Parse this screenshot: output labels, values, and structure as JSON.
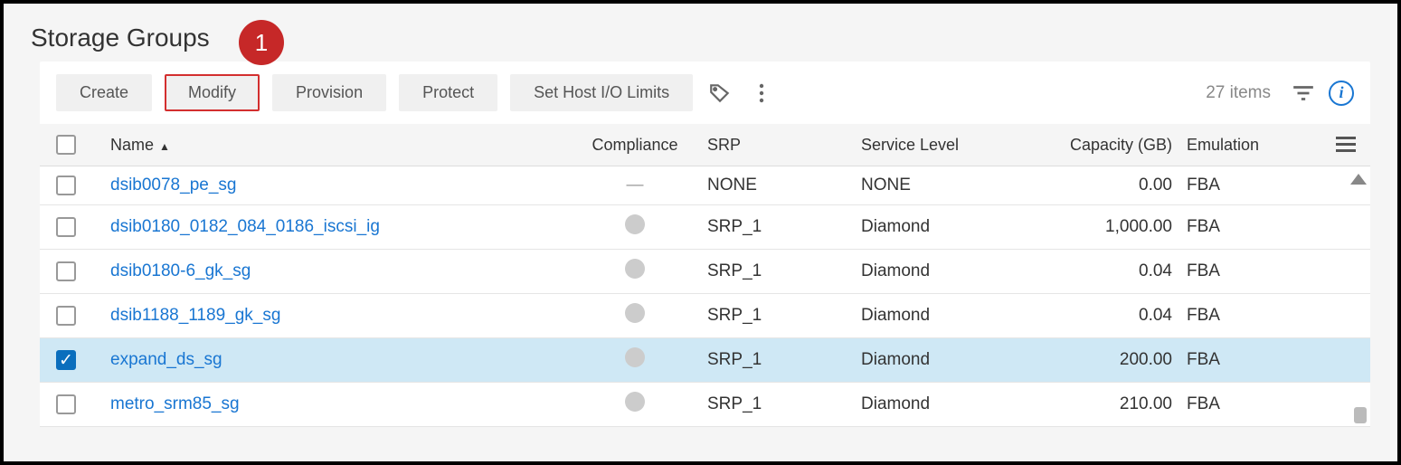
{
  "page": {
    "title": "Storage Groups"
  },
  "callout": {
    "number": "1",
    "bg": "#c62828"
  },
  "toolbar": {
    "create": "Create",
    "modify": "Modify",
    "provision": "Provision",
    "protect": "Protect",
    "set_limits": "Set Host I/O Limits",
    "item_count": "27 items"
  },
  "columns": {
    "name": "Name",
    "compliance": "Compliance",
    "srp": "SRP",
    "service_level": "Service Level",
    "capacity": "Capacity (GB)",
    "emulation": "Emulation"
  },
  "rows": [
    {
      "name": "dsib0078_pe_sg",
      "compliance": "dash",
      "srp": "NONE",
      "service": "NONE",
      "capacity": "0.00",
      "emulation": "FBA",
      "selected": false
    },
    {
      "name": "dsib0180_0182_084_0186_iscsi_ig",
      "compliance": "dot",
      "srp": "SRP_1",
      "service": "Diamond",
      "capacity": "1,000.00",
      "emulation": "FBA",
      "selected": false
    },
    {
      "name": "dsib0180-6_gk_sg",
      "compliance": "dot",
      "srp": "SRP_1",
      "service": "Diamond",
      "capacity": "0.04",
      "emulation": "FBA",
      "selected": false
    },
    {
      "name": "dsib1188_1189_gk_sg",
      "compliance": "dot",
      "srp": "SRP_1",
      "service": "Diamond",
      "capacity": "0.04",
      "emulation": "FBA",
      "selected": false
    },
    {
      "name": "expand_ds_sg",
      "compliance": "dot",
      "srp": "SRP_1",
      "service": "Diamond",
      "capacity": "200.00",
      "emulation": "FBA",
      "selected": true
    },
    {
      "name": "metro_srm85_sg",
      "compliance": "dot",
      "srp": "SRP_1",
      "service": "Diamond",
      "capacity": "210.00",
      "emulation": "FBA",
      "selected": false
    }
  ],
  "style": {
    "highlighted_button_border": "#d32f2f",
    "link_color": "#1976d2",
    "selected_row_bg": "#cfe8f5",
    "compliance_dot_color": "#cccccc",
    "page_bg": "#f5f5f5",
    "panel_bg": "#ffffff"
  }
}
